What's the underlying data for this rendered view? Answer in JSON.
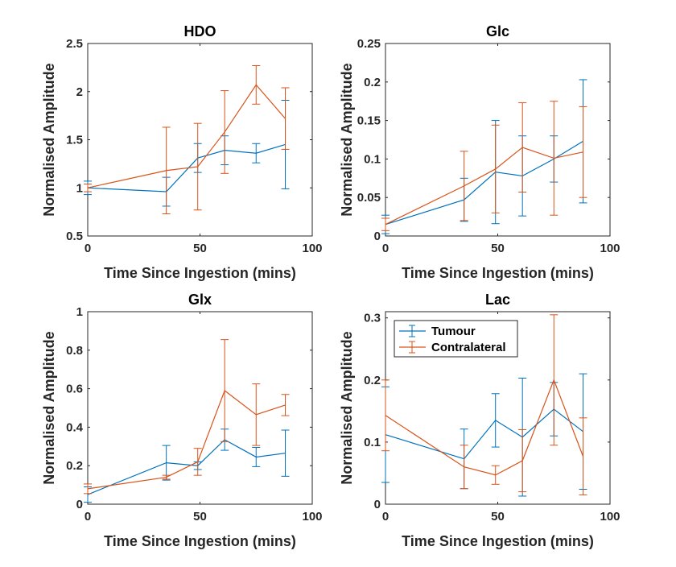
{
  "chart_data": [
    {
      "type": "line",
      "title": "HDO",
      "xlabel": "Time Since Ingestion (mins)",
      "ylabel": "Normalised Amplitude",
      "xlim": [
        0,
        100
      ],
      "ylim": [
        0.5,
        2.5
      ],
      "xticks": [
        "0",
        "50",
        "100"
      ],
      "yticks": [
        "0.5",
        "1",
        "1.5",
        "2",
        "2.5"
      ],
      "series": [
        {
          "name": "Tumour",
          "color": "#0072BD",
          "x": [
            0,
            35,
            49,
            61,
            75,
            88
          ],
          "y": [
            1.0,
            0.96,
            1.31,
            1.39,
            1.36,
            1.45
          ],
          "err": [
            0.07,
            0.15,
            0.15,
            0.15,
            0.1,
            0.46
          ]
        },
        {
          "name": "Contralateral",
          "color": "#D95319",
          "x": [
            0,
            35,
            49,
            61,
            75,
            88
          ],
          "y": [
            1.0,
            1.18,
            1.22,
            1.58,
            2.07,
            1.72
          ],
          "err": [
            0.04,
            0.45,
            0.45,
            0.43,
            0.2,
            0.32
          ]
        }
      ]
    },
    {
      "type": "line",
      "title": "Glc",
      "xlabel": "Time Since Ingestion (mins)",
      "ylabel": "Normalised Amplitude",
      "xlim": [
        0,
        100
      ],
      "ylim": [
        0,
        0.25
      ],
      "xticks": [
        "0",
        "50",
        "100"
      ],
      "yticks": [
        "0",
        "0.05",
        "0.1",
        "0.15",
        "0.2",
        "0.25"
      ],
      "series": [
        {
          "name": "Tumour",
          "color": "#0072BD",
          "x": [
            0,
            35,
            49,
            61,
            75,
            88
          ],
          "y": [
            0.015,
            0.047,
            0.083,
            0.078,
            0.1,
            0.123
          ],
          "err": [
            0.012,
            0.028,
            0.067,
            0.052,
            0.03,
            0.08
          ]
        },
        {
          "name": "Contralateral",
          "color": "#D95319",
          "x": [
            0,
            35,
            49,
            61,
            75,
            88
          ],
          "y": [
            0.015,
            0.065,
            0.087,
            0.115,
            0.101,
            0.109
          ],
          "err": [
            0.008,
            0.045,
            0.057,
            0.058,
            0.074,
            0.059
          ]
        }
      ]
    },
    {
      "type": "line",
      "title": "Glx",
      "xlabel": "Time Since Ingestion (mins)",
      "ylabel": "Normalised Amplitude",
      "xlim": [
        0,
        100
      ],
      "ylim": [
        0,
        1
      ],
      "xticks": [
        "0",
        "50",
        "100"
      ],
      "yticks": [
        "0",
        "0.2",
        "0.4",
        "0.6",
        "0.8",
        "1"
      ],
      "series": [
        {
          "name": "Tumour",
          "color": "#0072BD",
          "x": [
            0,
            35,
            49,
            61,
            75,
            88
          ],
          "y": [
            0.05,
            0.215,
            0.2,
            0.335,
            0.245,
            0.265
          ],
          "err": [
            0.04,
            0.09,
            0.02,
            0.055,
            0.05,
            0.12
          ]
        },
        {
          "name": "Contralateral",
          "color": "#D95319",
          "x": [
            0,
            35,
            49,
            61,
            75,
            88
          ],
          "y": [
            0.08,
            0.14,
            0.22,
            0.59,
            0.465,
            0.515
          ],
          "err": [
            0.025,
            0.01,
            0.07,
            0.265,
            0.16,
            0.055
          ]
        }
      ]
    },
    {
      "type": "line",
      "title": "Lac",
      "xlabel": "Time Since Ingestion (mins)",
      "ylabel": "Normalised Amplitude",
      "xlim": [
        0,
        100
      ],
      "ylim": [
        0,
        0.31
      ],
      "xticks": [
        "0",
        "50",
        "100"
      ],
      "yticks": [
        "0",
        "0.1",
        "0.2",
        "0.3"
      ],
      "legend": {
        "location": "top-left",
        "entries": [
          "Tumour",
          "Contralateral"
        ]
      },
      "series": [
        {
          "name": "Tumour",
          "color": "#0072BD",
          "x": [
            0,
            35,
            49,
            61,
            75,
            88
          ],
          "y": [
            0.112,
            0.073,
            0.135,
            0.108,
            0.153,
            0.117
          ],
          "err": [
            0.077,
            0.048,
            0.043,
            0.095,
            0.043,
            0.093
          ]
        },
        {
          "name": "Contralateral",
          "color": "#D95319",
          "x": [
            0,
            35,
            49,
            61,
            75,
            88
          ],
          "y": [
            0.143,
            0.06,
            0.047,
            0.07,
            0.2,
            0.077
          ],
          "err": [
            0.057,
            0.035,
            0.015,
            0.05,
            0.105,
            0.062
          ]
        }
      ]
    }
  ]
}
